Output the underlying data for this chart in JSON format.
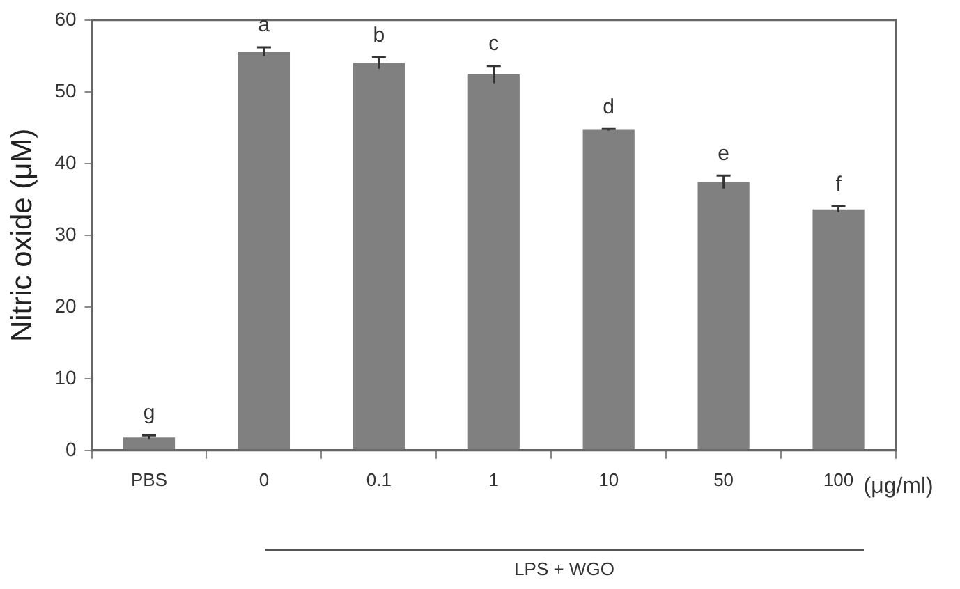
{
  "chart_data": {
    "type": "bar",
    "ylabel": "Nitric oxide (μM)",
    "xlabel": "(μg/ml)",
    "categories": [
      "PBS",
      "0",
      "0.1",
      "1",
      "10",
      "50",
      "100"
    ],
    "values": [
      1.8,
      55.6,
      54.0,
      52.4,
      44.7,
      37.4,
      33.6
    ],
    "errors": [
      0.3,
      0.6,
      0.8,
      1.2,
      0.1,
      0.9,
      0.4
    ],
    "color": "#808080",
    "ylim": [
      0,
      60
    ],
    "yticks": [
      0,
      10,
      20,
      30,
      40,
      50,
      60
    ],
    "grid": false,
    "legend": false,
    "annotations": [
      {
        "text": "g",
        "x": "PBS",
        "y": 1.8
      },
      {
        "text": "a",
        "x": "0",
        "y": 55.6
      },
      {
        "text": "b",
        "x": "0.1",
        "y": 54.0
      },
      {
        "text": "c",
        "x": "1",
        "y": 52.4
      },
      {
        "text": "d",
        "x": "10",
        "y": 44.7
      },
      {
        "text": "e",
        "x": "50",
        "y": 37.4
      },
      {
        "text": "f",
        "x": "100",
        "y": 33.6
      },
      "LPS + WGO"
    ]
  }
}
